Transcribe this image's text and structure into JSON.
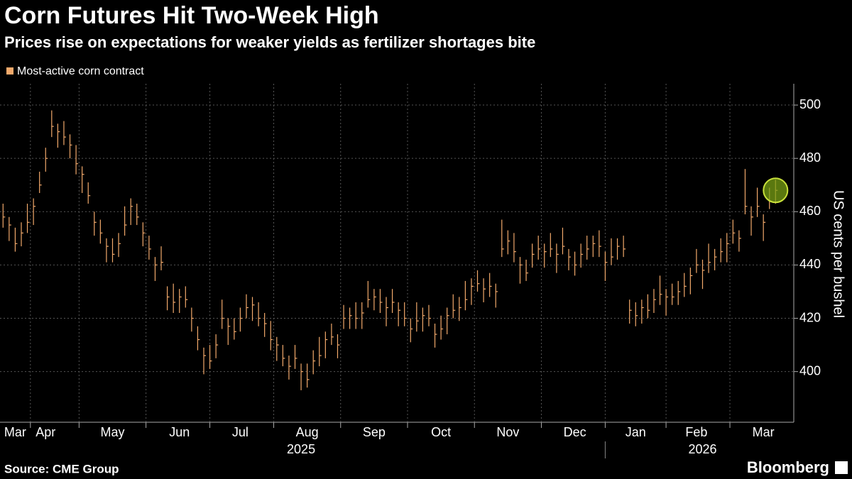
{
  "chart_data": {
    "type": "hlc",
    "title": "Corn Futures Hit Two-Week High",
    "subtitle": "Prices rise on expectations for weaker yields as fertilizer shortages bite",
    "y_axis_label": "US cents per bushel",
    "source": "Source: CME Group",
    "brand": "Bloomberg",
    "legend_position": "top-left",
    "grid": true,
    "ylim": [
      381,
      508
    ],
    "yticks": [
      400,
      420,
      440,
      460,
      480,
      500
    ],
    "xlim": [
      -0.5,
      130
    ],
    "xticks": [
      {
        "value": 2,
        "label": "Mar"
      },
      {
        "value": 7,
        "label": "Apr"
      },
      {
        "value": 18,
        "label": "May"
      },
      {
        "value": 29,
        "label": "Jun"
      },
      {
        "value": 39,
        "label": "Jul"
      },
      {
        "value": 50,
        "label": "Aug"
      },
      {
        "value": 61,
        "label": "Sep"
      },
      {
        "value": 72,
        "label": "Oct"
      },
      {
        "value": 83,
        "label": "Nov"
      },
      {
        "value": 94,
        "label": "Dec"
      },
      {
        "value": 104,
        "label": "Jan"
      },
      {
        "value": 114,
        "label": "Feb"
      },
      {
        "value": 125,
        "label": "Mar"
      }
    ],
    "x_group_labels": [
      {
        "value": 49,
        "label": "2025"
      },
      {
        "value": 115,
        "label": "2026"
      }
    ],
    "series": [
      {
        "name": "Most-active corn contract",
        "color": "#f2a96b",
        "high": [
          463,
          458,
          454,
          456,
          463,
          465,
          475,
          484,
          498,
          493,
          494,
          489,
          485,
          477,
          471,
          460,
          457,
          450,
          450,
          452,
          462,
          465,
          463,
          456,
          451,
          443,
          447,
          432,
          433,
          431,
          432,
          424,
          417,
          409,
          410,
          414,
          427,
          420,
          420,
          424,
          429,
          428,
          426,
          422,
          419,
          413,
          410,
          406,
          410,
          403,
          403,
          408,
          413,
          415,
          418,
          414,
          425,
          424,
          426,
          426,
          434,
          431,
          431,
          428,
          431,
          426,
          426,
          420,
          426,
          424,
          425,
          418,
          421,
          424,
          429,
          428,
          434,
          435,
          438,
          435,
          437,
          433,
          457,
          453,
          452,
          443,
          442,
          448,
          451,
          448,
          452,
          448,
          454,
          446,
          445,
          448,
          451,
          451,
          453,
          445,
          450,
          450,
          451,
          427,
          426,
          427,
          429,
          431,
          436,
          431,
          433,
          434,
          437,
          439,
          446,
          442,
          448,
          446,
          450,
          452,
          457,
          453,
          476,
          462,
          469,
          459,
          469,
          472
        ],
        "low": [
          454,
          449,
          445,
          447,
          452,
          455,
          467,
          475,
          488,
          484,
          485,
          480,
          474,
          467,
          463,
          451,
          448,
          441,
          441,
          443,
          451,
          455,
          455,
          447,
          442,
          434,
          438,
          423,
          422,
          422,
          424,
          415,
          408,
          399,
          401,
          405,
          416,
          410,
          412,
          415,
          420,
          419,
          417,
          413,
          408,
          404,
          402,
          397,
          401,
          393,
          394,
          399,
          402,
          405,
          410,
          405,
          416,
          416,
          416,
          416,
          424,
          423,
          422,
          417,
          422,
          417,
          417,
          411,
          415,
          415,
          417,
          409,
          412,
          414,
          420,
          419,
          423,
          425,
          430,
          426,
          428,
          424,
          443,
          444,
          441,
          433,
          434,
          439,
          442,
          439,
          443,
          437,
          444,
          438,
          436,
          439,
          442,
          443,
          443,
          434,
          440,
          442,
          443,
          418,
          417,
          418,
          420,
          422,
          425,
          421,
          425,
          425,
          428,
          429,
          437,
          431,
          437,
          438,
          441,
          441,
          448,
          445,
          459,
          451,
          458,
          449,
          461,
          463
        ],
        "close": [
          458,
          455,
          448,
          452,
          456,
          462,
          470,
          480,
          492,
          490,
          488,
          485,
          478,
          474,
          466,
          456,
          452,
          447,
          444,
          448,
          455,
          462,
          458,
          452,
          446,
          440,
          441,
          428,
          426,
          428,
          427,
          420,
          412,
          406,
          404,
          410,
          420,
          417,
          415,
          420,
          424,
          425,
          420,
          418,
          412,
          410,
          405,
          402,
          405,
          400,
          397,
          404,
          406,
          412,
          413,
          410,
          420,
          421,
          420,
          422,
          427,
          428,
          426,
          424,
          426,
          423,
          420,
          416,
          419,
          421,
          420,
          414,
          416,
          421,
          423,
          424,
          427,
          432,
          433,
          431,
          432,
          430,
          446,
          449,
          445,
          440,
          437,
          444,
          446,
          445,
          446,
          444,
          447,
          443,
          440,
          444,
          446,
          448,
          447,
          441,
          443,
          447,
          446,
          423,
          421,
          424,
          423,
          427,
          429,
          428,
          428,
          430,
          432,
          436,
          440,
          438,
          441,
          443,
          445,
          448,
          452,
          450,
          462,
          458,
          462,
          456,
          464,
          468
        ]
      }
    ]
  }
}
